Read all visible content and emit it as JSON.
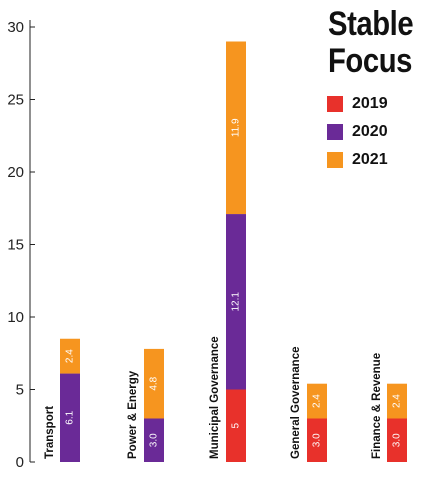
{
  "chart_data": {
    "type": "bar",
    "stacked": true,
    "title": "Stable Focus",
    "categories": [
      "Transport",
      "Power & Energy",
      "Municipal Governance",
      "General Governance",
      "Finance & Revenue"
    ],
    "series": [
      {
        "name": "2019",
        "color": "#e8312b",
        "values": [
          0,
          0,
          5,
          3.0,
          3.0
        ],
        "labels": [
          "",
          "",
          "5",
          "3.0",
          "3.0"
        ]
      },
      {
        "name": "2020",
        "color": "#6a2a97",
        "values": [
          6.1,
          3.0,
          12.1,
          0,
          0
        ],
        "labels": [
          "6.1",
          "3.0",
          "12.1",
          "",
          ""
        ]
      },
      {
        "name": "2021",
        "color": "#f6951f",
        "values": [
          2.4,
          4.8,
          11.9,
          2.4,
          2.4
        ],
        "labels": [
          "2.4",
          "4.8",
          "11.9",
          "2.4",
          "2.4"
        ]
      }
    ],
    "yticks": [
      "0",
      "5",
      "10",
      "15",
      "20",
      "25",
      "30"
    ],
    "ylim": [
      0,
      30
    ],
    "grid": false,
    "legend": "top-right"
  }
}
